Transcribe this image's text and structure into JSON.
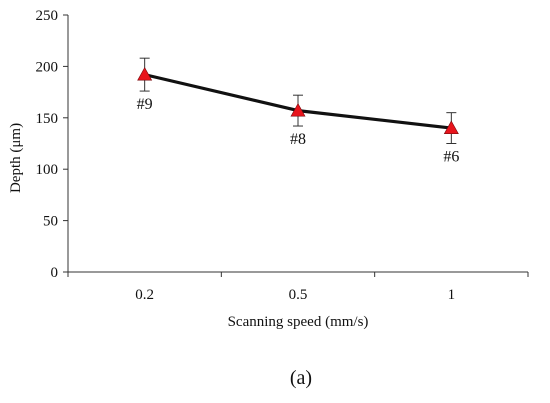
{
  "chart_data": {
    "type": "line",
    "categories": [
      "0.2",
      "0.5",
      "1"
    ],
    "series": [
      {
        "values": [
          192,
          157,
          140
        ],
        "errors": [
          16,
          15,
          15
        ],
        "point_labels": [
          "#9",
          "#8",
          "#6"
        ],
        "line_color": "#111111",
        "marker": "triangle",
        "marker_color": "#e8141c"
      }
    ],
    "xlabel": "Scanning speed (mm/s)",
    "ylabel": "Depth (μm)",
    "ylim": [
      0,
      250
    ],
    "yticks": [
      0,
      50,
      100,
      150,
      200,
      250
    ],
    "grid": false,
    "legend": "none"
  },
  "caption": "(a)"
}
